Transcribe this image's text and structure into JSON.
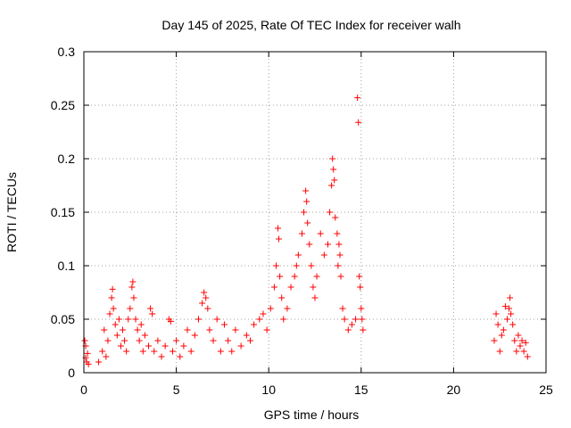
{
  "chart_data": {
    "type": "scatter",
    "title": "Day 145 of 2025, Rate Of TEC Index for receiver walh",
    "xlabel": "GPS time / hours",
    "ylabel": "ROTI / TECUs",
    "xlim": [
      0,
      25
    ],
    "ylim": [
      0,
      0.3
    ],
    "x_ticks": [
      0,
      5,
      10,
      15,
      20,
      25
    ],
    "x_tick_labels": [
      "0",
      "5",
      "10",
      "15",
      "20",
      "25"
    ],
    "y_ticks": [
      0,
      0.05,
      0.1,
      0.15,
      0.2,
      0.25,
      0.3
    ],
    "y_tick_labels": [
      "0",
      "0.05",
      "0.1",
      "0.15",
      "0.2",
      "0.25",
      "0.3"
    ],
    "grid": true,
    "marker": "+",
    "series": [
      {
        "name": "ROTI",
        "color": "#ff0000",
        "points": [
          [
            0.05,
            0.03
          ],
          [
            0.1,
            0.025
          ],
          [
            0.15,
            0.01
          ],
          [
            0.2,
            0.018
          ],
          [
            0.25,
            0.008
          ],
          [
            0.1,
            0.014
          ],
          [
            0.8,
            0.01
          ],
          [
            1.0,
            0.02
          ],
          [
            1.1,
            0.04
          ],
          [
            1.2,
            0.015
          ],
          [
            1.3,
            0.03
          ],
          [
            1.4,
            0.055
          ],
          [
            1.5,
            0.07
          ],
          [
            1.55,
            0.078
          ],
          [
            1.6,
            0.06
          ],
          [
            1.7,
            0.045
          ],
          [
            1.8,
            0.035
          ],
          [
            1.9,
            0.05
          ],
          [
            2.0,
            0.025
          ],
          [
            2.1,
            0.04
          ],
          [
            2.2,
            0.03
          ],
          [
            2.3,
            0.02
          ],
          [
            2.4,
            0.05
          ],
          [
            2.5,
            0.06
          ],
          [
            2.6,
            0.08
          ],
          [
            2.65,
            0.085
          ],
          [
            2.7,
            0.07
          ],
          [
            2.8,
            0.05
          ],
          [
            2.9,
            0.04
          ],
          [
            3.0,
            0.03
          ],
          [
            3.1,
            0.045
          ],
          [
            3.2,
            0.02
          ],
          [
            3.3,
            0.035
          ],
          [
            3.5,
            0.025
          ],
          [
            3.6,
            0.06
          ],
          [
            3.7,
            0.055
          ],
          [
            3.8,
            0.02
          ],
          [
            4.0,
            0.03
          ],
          [
            4.2,
            0.015
          ],
          [
            4.4,
            0.025
          ],
          [
            4.6,
            0.05
          ],
          [
            4.7,
            0.048
          ],
          [
            4.8,
            0.02
          ],
          [
            5.0,
            0.03
          ],
          [
            5.2,
            0.015
          ],
          [
            5.4,
            0.025
          ],
          [
            5.6,
            0.04
          ],
          [
            5.8,
            0.02
          ],
          [
            6.0,
            0.035
          ],
          [
            6.2,
            0.05
          ],
          [
            6.4,
            0.065
          ],
          [
            6.5,
            0.075
          ],
          [
            6.6,
            0.07
          ],
          [
            6.7,
            0.06
          ],
          [
            6.8,
            0.04
          ],
          [
            7.0,
            0.03
          ],
          [
            7.2,
            0.05
          ],
          [
            7.4,
            0.02
          ],
          [
            7.6,
            0.045
          ],
          [
            7.8,
            0.03
          ],
          [
            8.0,
            0.02
          ],
          [
            8.2,
            0.04
          ],
          [
            8.5,
            0.025
          ],
          [
            8.8,
            0.035
          ],
          [
            9.0,
            0.03
          ],
          [
            9.2,
            0.045
          ],
          [
            9.5,
            0.05
          ],
          [
            9.7,
            0.055
          ],
          [
            9.9,
            0.04
          ],
          [
            10.1,
            0.06
          ],
          [
            10.3,
            0.08
          ],
          [
            10.4,
            0.1
          ],
          [
            10.5,
            0.135
          ],
          [
            10.55,
            0.125
          ],
          [
            10.6,
            0.09
          ],
          [
            10.7,
            0.07
          ],
          [
            10.8,
            0.05
          ],
          [
            11.0,
            0.06
          ],
          [
            11.2,
            0.08
          ],
          [
            11.4,
            0.09
          ],
          [
            11.5,
            0.1
          ],
          [
            11.6,
            0.11
          ],
          [
            11.8,
            0.13
          ],
          [
            11.9,
            0.15
          ],
          [
            12.0,
            0.17
          ],
          [
            12.05,
            0.16
          ],
          [
            12.1,
            0.14
          ],
          [
            12.2,
            0.12
          ],
          [
            12.3,
            0.1
          ],
          [
            12.4,
            0.08
          ],
          [
            12.5,
            0.07
          ],
          [
            12.6,
            0.09
          ],
          [
            12.8,
            0.13
          ],
          [
            13.0,
            0.11
          ],
          [
            13.2,
            0.12
          ],
          [
            13.3,
            0.15
          ],
          [
            13.4,
            0.175
          ],
          [
            13.45,
            0.2
          ],
          [
            13.5,
            0.19
          ],
          [
            13.55,
            0.18
          ],
          [
            13.6,
            0.145
          ],
          [
            13.7,
            0.13
          ],
          [
            13.75,
            0.1
          ],
          [
            13.8,
            0.12
          ],
          [
            13.85,
            0.11
          ],
          [
            13.9,
            0.09
          ],
          [
            14.0,
            0.06
          ],
          [
            14.1,
            0.05
          ],
          [
            14.3,
            0.04
          ],
          [
            14.5,
            0.045
          ],
          [
            14.7,
            0.05
          ],
          [
            14.8,
            0.257
          ],
          [
            14.85,
            0.234
          ],
          [
            14.9,
            0.09
          ],
          [
            14.95,
            0.08
          ],
          [
            15.0,
            0.06
          ],
          [
            15.05,
            0.05
          ],
          [
            15.1,
            0.04
          ],
          [
            22.2,
            0.03
          ],
          [
            22.3,
            0.055
          ],
          [
            22.4,
            0.045
          ],
          [
            22.5,
            0.02
          ],
          [
            22.6,
            0.035
          ],
          [
            22.7,
            0.04
          ],
          [
            22.8,
            0.062
          ],
          [
            22.9,
            0.05
          ],
          [
            23.0,
            0.06
          ],
          [
            23.05,
            0.07
          ],
          [
            23.1,
            0.055
          ],
          [
            23.2,
            0.045
          ],
          [
            23.3,
            0.03
          ],
          [
            23.4,
            0.02
          ],
          [
            23.5,
            0.035
          ],
          [
            23.6,
            0.025
          ],
          [
            23.7,
            0.03
          ],
          [
            23.8,
            0.02
          ],
          [
            23.9,
            0.028
          ],
          [
            24.0,
            0.015
          ]
        ]
      }
    ]
  }
}
